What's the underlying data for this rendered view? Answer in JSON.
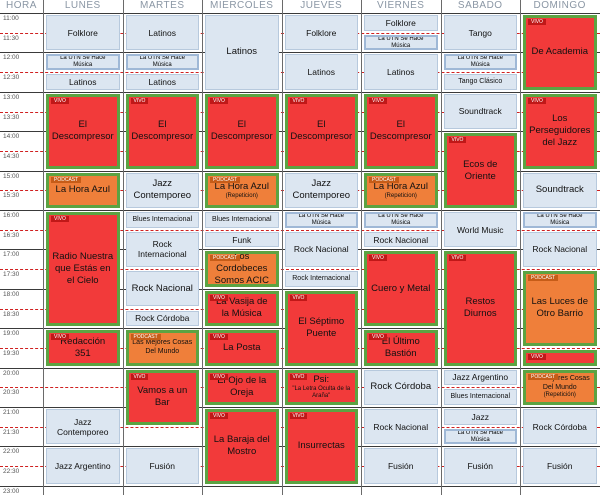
{
  "header": {
    "hour_label": "HORA",
    "days": [
      "LUNES",
      "MARTES",
      "MIERCOLES",
      "JUEVES",
      "VIERNES",
      "SABADO",
      "DOMINGO"
    ]
  },
  "times": [
    "11:00",
    "11:30",
    "12:00",
    "12:30",
    "13:00",
    "13:30",
    "14:00",
    "14:30",
    "15:00",
    "15:30",
    "16:00",
    "16:30",
    "17:00",
    "17:30",
    "18:00",
    "18:30",
    "19:00",
    "19:30",
    "20:00",
    "20:30",
    "21:00",
    "21:30",
    "22:00",
    "22:30",
    "23:00"
  ],
  "tags": {
    "live": "VIVO",
    "podcast": "PODCAST"
  },
  "colors": {
    "recorded": "#dce6f1",
    "live": "#f23a3a",
    "podcast": "#ef7f3a",
    "live_border": "#5ca342",
    "half_hour_line": "#d02020"
  },
  "schedule": [
    [
      {
        "start": "11:00",
        "end": "12:00",
        "title": "Folklore",
        "kind": "rec"
      },
      {
        "start": "12:00",
        "end": "12:30",
        "title": "La UTN Se Hace Música",
        "kind": "utn"
      },
      {
        "start": "12:30",
        "end": "13:00",
        "title": "Latinos",
        "kind": "rec"
      },
      {
        "start": "13:00",
        "end": "15:00",
        "title": "El Descompresor",
        "kind": "vivo"
      },
      {
        "start": "15:00",
        "end": "16:00",
        "title": "La Hora Azul",
        "kind": "pod"
      },
      {
        "start": "16:00",
        "end": "19:00",
        "title": "Radio Nuestra que Estás en el Cielo",
        "kind": "vivo"
      },
      {
        "start": "19:00",
        "end": "20:00",
        "title": "Redacción 351",
        "kind": "vivo"
      },
      {
        "start": "21:00",
        "end": "22:00",
        "title": "Jazz Contemporeo",
        "kind": "rec"
      },
      {
        "start": "22:00",
        "end": "23:00",
        "title": "Jazz Argentino",
        "kind": "rec"
      }
    ],
    [
      {
        "start": "11:00",
        "end": "12:00",
        "title": "Latinos",
        "kind": "rec"
      },
      {
        "start": "12:00",
        "end": "12:30",
        "title": "La UTN Se Hace Música",
        "kind": "utn"
      },
      {
        "start": "12:30",
        "end": "13:00",
        "title": "Latinos",
        "kind": "rec"
      },
      {
        "start": "13:00",
        "end": "15:00",
        "title": "El Descompresor",
        "kind": "vivo"
      },
      {
        "start": "15:00",
        "end": "16:00",
        "title": "Jazz Contemporeo",
        "kind": "rec"
      },
      {
        "start": "16:00",
        "end": "16:30",
        "title": "Blues Internacional",
        "kind": "rec",
        "size": "sm"
      },
      {
        "start": "16:30",
        "end": "17:30",
        "title": "Rock Internacional",
        "kind": "rec"
      },
      {
        "start": "17:30",
        "end": "18:30",
        "title": "Rock Nacional",
        "kind": "rec"
      },
      {
        "start": "18:30",
        "end": "19:00",
        "title": "Rock Córdoba",
        "kind": "rec"
      },
      {
        "start": "19:00",
        "end": "20:00",
        "title": "Las Mejores Cosas Del Mundo",
        "kind": "pod",
        "size": "sm"
      },
      {
        "start": "20:00",
        "end": "21:30",
        "title": "Vamos a un Bar",
        "kind": "vivo"
      },
      {
        "start": "22:00",
        "end": "23:00",
        "title": "Fusión",
        "kind": "rec"
      }
    ],
    [
      {
        "start": "11:00",
        "end": "13:00",
        "title": "Latinos",
        "kind": "rec"
      },
      {
        "start": "13:00",
        "end": "15:00",
        "title": "El Descompresor",
        "kind": "vivo"
      },
      {
        "start": "15:00",
        "end": "16:00",
        "title": "La Hora Azul",
        "sub": "(Repeticion)",
        "kind": "pod"
      },
      {
        "start": "16:00",
        "end": "16:30",
        "title": "Blues Internacional",
        "kind": "rec",
        "size": "sm"
      },
      {
        "start": "16:30",
        "end": "17:00",
        "title": "Funk",
        "kind": "rec"
      },
      {
        "start": "17:00",
        "end": "18:00",
        "title": "Los Cordobeces Somos ACIC",
        "kind": "pod"
      },
      {
        "start": "18:00",
        "end": "19:00",
        "title": "La Vasija de la Música",
        "kind": "vivo"
      },
      {
        "start": "19:00",
        "end": "20:00",
        "title": "La Posta",
        "kind": "vivo"
      },
      {
        "start": "20:00",
        "end": "21:00",
        "title": "El Ojo de la Oreja",
        "kind": "vivo"
      },
      {
        "start": "21:00",
        "end": "23:00",
        "title": "La Baraja del Mostro",
        "kind": "vivo"
      }
    ],
    [
      {
        "start": "11:00",
        "end": "12:00",
        "title": "Folklore",
        "kind": "rec"
      },
      {
        "start": "12:00",
        "end": "13:00",
        "title": "Latinos",
        "kind": "rec"
      },
      {
        "start": "13:00",
        "end": "15:00",
        "title": "El Descompresor",
        "kind": "vivo"
      },
      {
        "start": "15:00",
        "end": "16:00",
        "title": "Jazz Contemporeo",
        "kind": "rec"
      },
      {
        "start": "16:00",
        "end": "16:30",
        "title": "La UTN Se Hace Música",
        "kind": "utn"
      },
      {
        "start": "16:30",
        "end": "17:30",
        "title": "Rock Nacional",
        "kind": "rec"
      },
      {
        "start": "17:30",
        "end": "18:00",
        "title": "Rock Internacional",
        "kind": "rec",
        "size": "sm"
      },
      {
        "start": "18:00",
        "end": "20:00",
        "title": "El Séptimo Puente",
        "kind": "vivo"
      },
      {
        "start": "20:00",
        "end": "21:00",
        "title": "Psi:",
        "sub": "\"La Letra Oculta de la Araña\"",
        "kind": "vivo"
      },
      {
        "start": "21:00",
        "end": "23:00",
        "title": "Insurrectas",
        "kind": "vivo"
      }
    ],
    [
      {
        "start": "11:00",
        "end": "11:30",
        "title": "Folklore",
        "kind": "rec"
      },
      {
        "start": "11:30",
        "end": "12:00",
        "title": "La UTN Se Hace Música",
        "kind": "utn"
      },
      {
        "start": "12:00",
        "end": "13:00",
        "title": "Latinos",
        "kind": "rec"
      },
      {
        "start": "13:00",
        "end": "15:00",
        "title": "El Descompresor",
        "kind": "vivo"
      },
      {
        "start": "15:00",
        "end": "16:00",
        "title": "La Hora Azul",
        "sub": "(Repeticion)",
        "kind": "pod"
      },
      {
        "start": "16:00",
        "end": "16:30",
        "title": "La UTN Se Hace Música",
        "kind": "utn"
      },
      {
        "start": "16:30",
        "end": "17:00",
        "title": "Rock Nacional",
        "kind": "rec"
      },
      {
        "start": "17:00",
        "end": "19:00",
        "title": "Cuero y Metal",
        "kind": "vivo"
      },
      {
        "start": "19:00",
        "end": "20:00",
        "title": "El Último Bastión",
        "kind": "vivo"
      },
      {
        "start": "20:00",
        "end": "21:00",
        "title": "Rock Córdoba",
        "kind": "rec"
      },
      {
        "start": "21:00",
        "end": "22:00",
        "title": "Rock Nacional",
        "kind": "rec"
      },
      {
        "start": "22:00",
        "end": "23:00",
        "title": "Fusión",
        "kind": "rec"
      }
    ],
    [
      {
        "start": "11:00",
        "end": "12:00",
        "title": "Tango",
        "kind": "rec"
      },
      {
        "start": "12:00",
        "end": "12:30",
        "title": "La UTN Se Hace Música",
        "kind": "utn"
      },
      {
        "start": "12:30",
        "end": "13:00",
        "title": "Tango Clásico",
        "kind": "rec",
        "size": "sm"
      },
      {
        "start": "13:00",
        "end": "14:00",
        "title": "Soundtrack",
        "kind": "rec"
      },
      {
        "start": "14:00",
        "end": "16:00",
        "title": "Ecos de Oriente",
        "kind": "vivo"
      },
      {
        "start": "16:00",
        "end": "17:00",
        "title": "World Music",
        "kind": "rec"
      },
      {
        "start": "17:00",
        "end": "20:00",
        "title": "Restos Diurnos",
        "kind": "vivo"
      },
      {
        "start": "20:00",
        "end": "20:30",
        "title": "Jazz Argentino",
        "kind": "rec"
      },
      {
        "start": "20:30",
        "end": "21:00",
        "title": "Blues Internacional",
        "kind": "rec",
        "size": "sm"
      },
      {
        "start": "21:00",
        "end": "21:30",
        "title": "Jazz",
        "kind": "rec"
      },
      {
        "start": "21:30",
        "end": "22:00",
        "title": "La UTN Se Hace Música",
        "kind": "utn"
      },
      {
        "start": "22:00",
        "end": "23:00",
        "title": "Fusión",
        "kind": "rec"
      }
    ],
    [
      {
        "start": "11:00",
        "end": "13:00",
        "title": "De Academia",
        "kind": "vivo"
      },
      {
        "start": "13:00",
        "end": "15:00",
        "title": "Los Perseguidores del Jazz",
        "kind": "vivo"
      },
      {
        "start": "15:00",
        "end": "16:00",
        "title": "Soundtrack",
        "kind": "rec"
      },
      {
        "start": "16:00",
        "end": "16:30",
        "title": "La UTN Se Hace Música",
        "kind": "utn"
      },
      {
        "start": "16:30",
        "end": "17:30",
        "title": "Rock Nacional",
        "kind": "rec"
      },
      {
        "start": "17:30",
        "end": "19:30",
        "title": "Las Luces de Otro Barrio",
        "kind": "pod"
      },
      {
        "start": "19:30",
        "end": "20:00",
        "title": "",
        "kind": "vivo"
      },
      {
        "start": "20:00",
        "end": "21:00",
        "title": "Las Mejores Cosas Del Mundo",
        "sub": "(Repetición)",
        "kind": "pod",
        "size": "sm"
      },
      {
        "start": "21:00",
        "end": "22:00",
        "title": "Rock Córdoba",
        "kind": "rec"
      },
      {
        "start": "22:00",
        "end": "23:00",
        "title": "Fusión",
        "kind": "rec"
      }
    ]
  ]
}
